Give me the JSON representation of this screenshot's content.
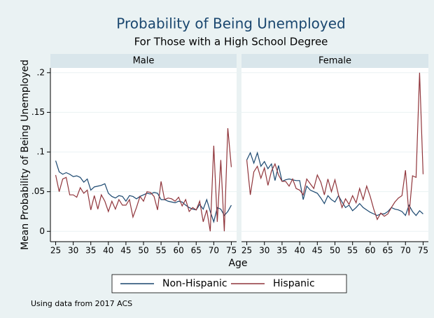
{
  "chart_data": {
    "type": "line",
    "title": "Probability of Being Unemployed",
    "subtitle": "For Those with a High School Degree",
    "xlabel": "Age",
    "ylabel": "Mean Probability of Being Unemployed",
    "note": "Using data from 2017 ACS",
    "legend_position": "bottom",
    "grid": true,
    "series": [
      {
        "name": "Non-Hispanic",
        "color": "#1a476f"
      },
      {
        "name": "Hispanic",
        "color": "#90353b"
      }
    ],
    "x": [
      25,
      26,
      27,
      28,
      29,
      30,
      31,
      32,
      33,
      34,
      35,
      36,
      37,
      38,
      39,
      40,
      41,
      42,
      43,
      44,
      45,
      46,
      47,
      48,
      49,
      50,
      51,
      52,
      53,
      54,
      55,
      56,
      57,
      58,
      59,
      60,
      61,
      62,
      63,
      64,
      65,
      66,
      67,
      68,
      69,
      70,
      71,
      72,
      73,
      74,
      75
    ],
    "xlim": [
      23.5,
      76.5
    ],
    "xticks": [
      25,
      30,
      35,
      40,
      45,
      50,
      55,
      60,
      65,
      70,
      75
    ],
    "ylim": [
      -0.013,
      0.206
    ],
    "yticks": [
      0,
      {
        "value": 0.05,
        "label": ".05"
      },
      {
        "value": 0.1,
        "label": ".1"
      },
      {
        "value": 0.15,
        "label": ".15"
      },
      {
        "value": 0.2,
        "label": ".2"
      }
    ],
    "panels": [
      {
        "title": "Male",
        "values": [
          [
            0.089,
            0.075,
            0.072,
            0.074,
            0.072,
            0.069,
            0.07,
            0.068,
            0.062,
            0.066,
            0.052,
            0.056,
            0.057,
            0.058,
            0.06,
            0.048,
            0.044,
            0.042,
            0.045,
            0.044,
            0.038,
            0.045,
            0.044,
            0.041,
            0.044,
            0.046,
            0.048,
            0.047,
            0.049,
            0.048,
            0.04,
            0.04,
            0.038,
            0.037,
            0.036,
            0.038,
            0.037,
            0.033,
            0.03,
            0.028,
            0.027,
            0.034,
            0.028,
            0.04,
            0.025,
            0.012,
            0.03,
            0.028,
            0.02,
            0.025,
            0.033
          ],
          [
            0.071,
            0.05,
            0.066,
            0.068,
            0.046,
            0.046,
            0.043,
            0.055,
            0.048,
            0.052,
            0.027,
            0.045,
            0.028,
            0.046,
            0.038,
            0.025,
            0.038,
            0.028,
            0.04,
            0.033,
            0.033,
            0.04,
            0.018,
            0.03,
            0.044,
            0.038,
            0.05,
            0.049,
            0.044,
            0.027,
            0.063,
            0.04,
            0.042,
            0.041,
            0.038,
            0.043,
            0.032,
            0.04,
            0.025,
            0.03,
            0.027,
            0.038,
            0.012,
            0.027,
            0.0,
            0.108,
            0.012,
            0.09,
            0.0,
            0.13,
            0.081
          ]
        ]
      },
      {
        "title": "Female",
        "values": [
          [
            0.09,
            0.099,
            0.086,
            0.099,
            0.082,
            0.088,
            0.079,
            0.085,
            0.064,
            0.083,
            0.063,
            0.065,
            0.066,
            0.065,
            0.064,
            0.064,
            0.04,
            0.057,
            0.052,
            0.05,
            0.048,
            0.042,
            0.035,
            0.045,
            0.04,
            0.037,
            0.045,
            0.037,
            0.03,
            0.033,
            0.026,
            0.03,
            0.035,
            0.03,
            0.027,
            0.024,
            0.022,
            0.02,
            0.022,
            0.022,
            0.025,
            0.03,
            0.028,
            0.027,
            0.025,
            0.02,
            0.033,
            0.025,
            0.02,
            0.026,
            0.022
          ],
          [
            0.09,
            0.046,
            0.075,
            0.082,
            0.067,
            0.08,
            0.058,
            0.076,
            0.085,
            0.071,
            0.063,
            0.063,
            0.057,
            0.066,
            0.054,
            0.052,
            0.046,
            0.066,
            0.06,
            0.054,
            0.071,
            0.062,
            0.046,
            0.066,
            0.05,
            0.065,
            0.046,
            0.03,
            0.041,
            0.034,
            0.045,
            0.036,
            0.054,
            0.04,
            0.057,
            0.044,
            0.028,
            0.015,
            0.023,
            0.019,
            0.022,
            0.03,
            0.037,
            0.042,
            0.045,
            0.077,
            0.02,
            0.07,
            0.068,
            0.2,
            0.072
          ]
        ]
      }
    ]
  }
}
